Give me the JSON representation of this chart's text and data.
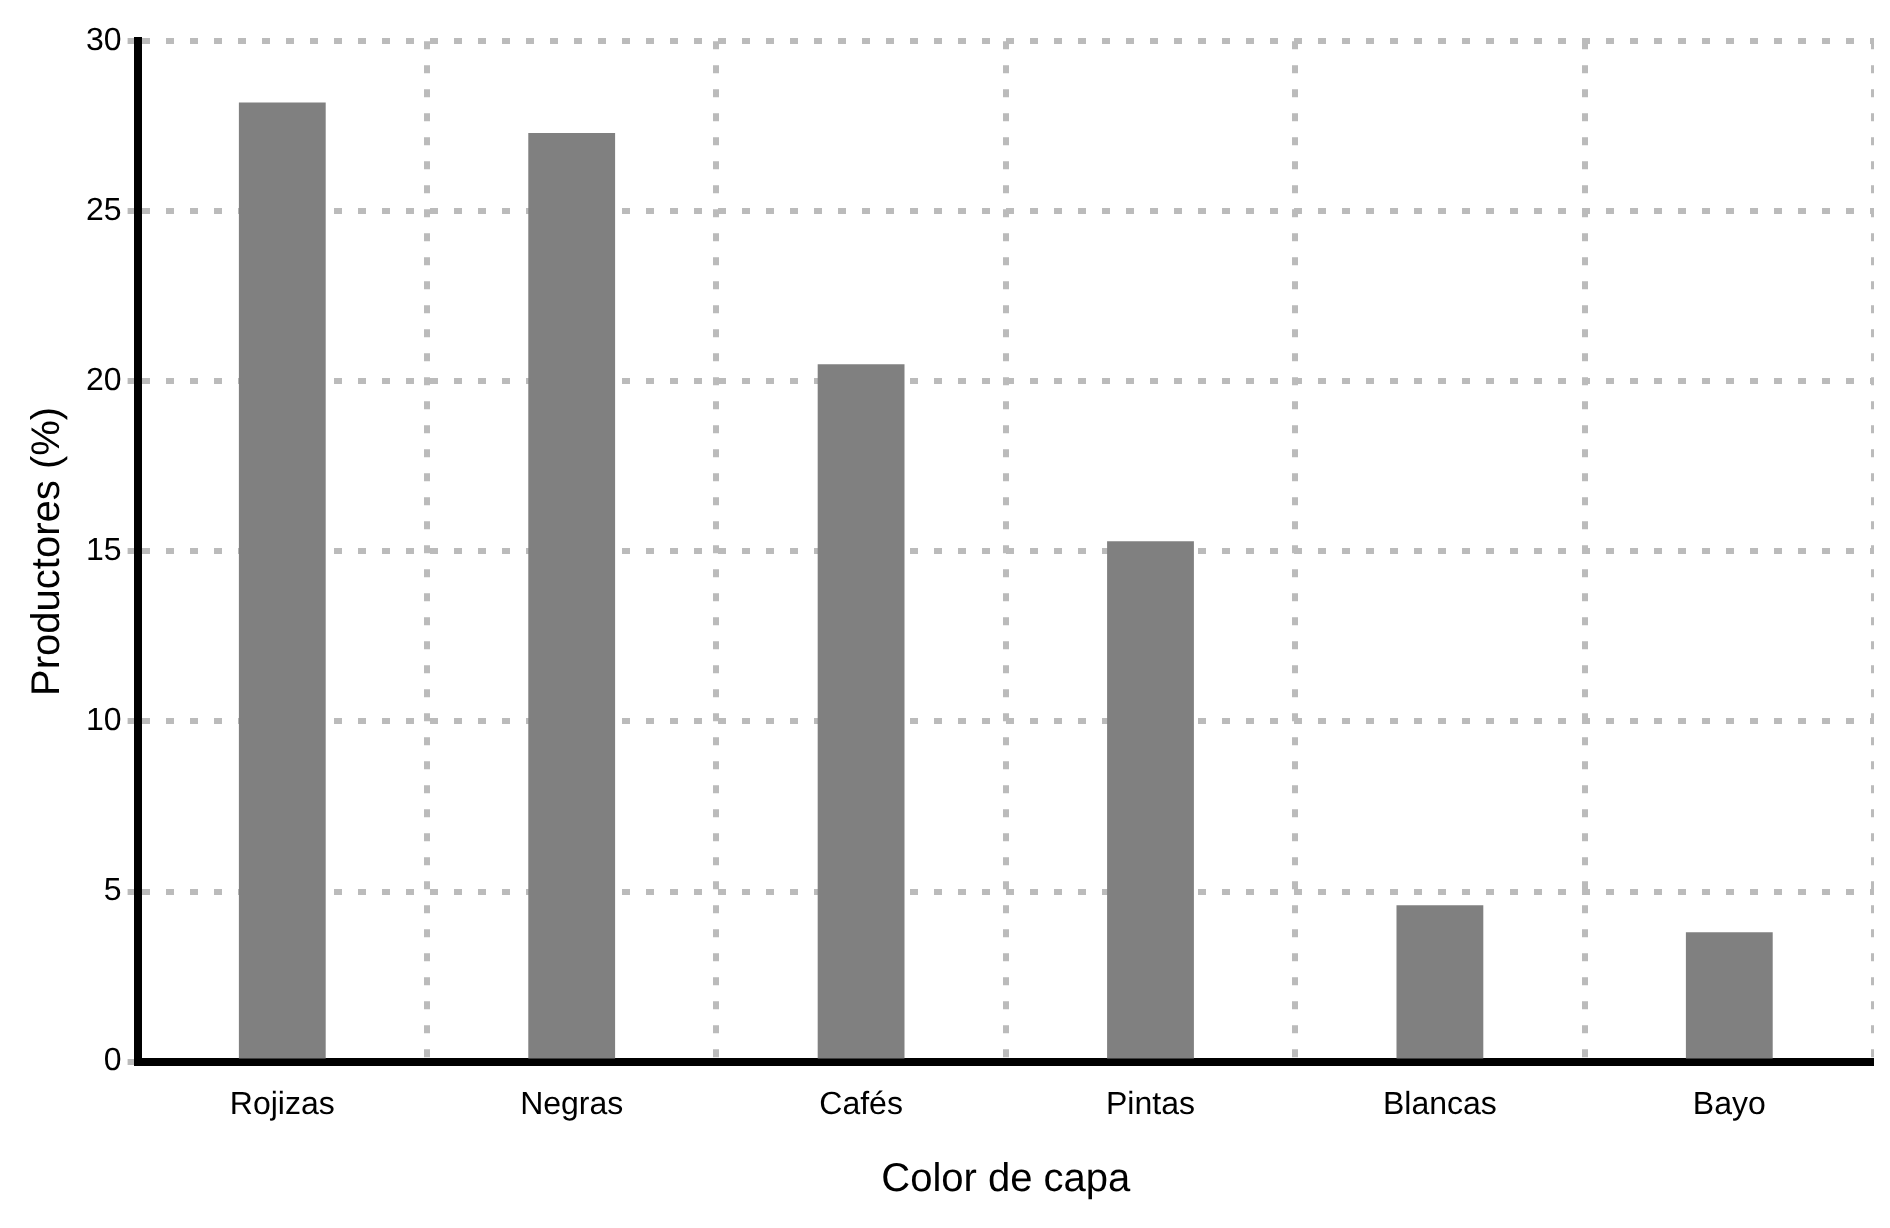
{
  "chart_data": {
    "type": "bar",
    "xlabel": "Color de capa",
    "ylabel": "Productores (%)",
    "categories": [
      "Rojizas",
      "Negras",
      "Cafés",
      "Pintas",
      "Blancas",
      "Bayo"
    ],
    "values": [
      28.2,
      27.3,
      20.5,
      15.3,
      4.6,
      3.8
    ],
    "color": "#808080",
    "ylim": [
      0,
      30
    ],
    "yticks": [
      0,
      5,
      10,
      15,
      20,
      25,
      30
    ],
    "grid": true
  }
}
